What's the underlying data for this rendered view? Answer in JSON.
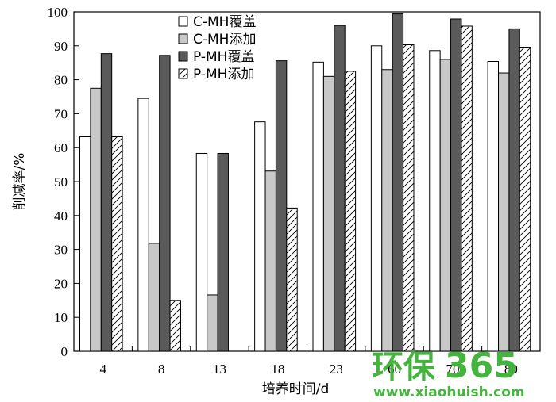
{
  "chart_data": {
    "type": "bar",
    "title": "",
    "xlabel": "培养时间/d",
    "ylabel": "削减率/%",
    "ylim": [
      0,
      100
    ],
    "yticks": [
      0,
      10,
      20,
      30,
      40,
      50,
      60,
      70,
      80,
      90,
      100
    ],
    "categories": [
      "4",
      "8",
      "13",
      "18",
      "23",
      "60",
      "70",
      "80"
    ],
    "legend_position": "top-center",
    "grid": false,
    "series": [
      {
        "name": "C-MH覆盖",
        "fill": "white",
        "values": [
          63.2,
          74.5,
          58.3,
          67.6,
          85.2,
          90.0,
          88.6,
          85.4
        ]
      },
      {
        "name": "C-MH添加",
        "fill": "light-gray",
        "values": [
          77.5,
          31.8,
          16.6,
          53.1,
          81.0,
          83.0,
          86.0,
          82.0
        ]
      },
      {
        "name": "P-MH覆盖",
        "fill": "dark-gray",
        "values": [
          87.7,
          87.2,
          58.3,
          85.6,
          96.0,
          99.4,
          97.9,
          95.0
        ]
      },
      {
        "name": "P-MH添加",
        "fill": "hatched",
        "values": [
          63.2,
          15.0,
          0,
          42.2,
          82.5,
          90.3,
          95.8,
          89.6
        ]
      }
    ],
    "colors": {
      "white": "#ffffff",
      "light-gray": "#c8c8c8",
      "dark-gray": "#5a5a5a",
      "outline": "#000000"
    }
  },
  "watermark": {
    "brand_text": "环保",
    "brand_number": "365",
    "url": "www.xiaohuish.com",
    "color": "#3cb034"
  }
}
